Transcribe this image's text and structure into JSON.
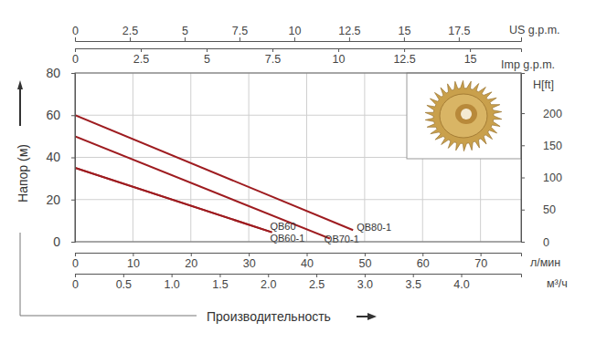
{
  "chart_data": {
    "type": "line",
    "xlabel": "Производительность",
    "ylabel": "Напор (м)",
    "xunit_label": "л/мин",
    "xlim": [
      0,
      77
    ],
    "xticks": [
      0,
      10,
      20,
      30,
      40,
      50,
      60,
      70
    ],
    "ylim": [
      0,
      80
    ],
    "yticks": [
      0,
      20,
      40,
      60,
      80
    ],
    "y2label": "H[ft]",
    "y2lim": [
      0,
      262.5
    ],
    "y2ticks": [
      0,
      50,
      100,
      150,
      200
    ],
    "x2label": "US g.p.m.",
    "x2lim": [
      0,
      20.34
    ],
    "x2ticks": [
      0,
      2.5,
      5,
      7.5,
      10,
      12.5,
      15,
      17.5
    ],
    "x3label": "Imp g.p.m.",
    "x3lim": [
      0,
      16.94
    ],
    "x3ticks": [
      0,
      2.5,
      5,
      7.5,
      10,
      12.5,
      15
    ],
    "x4label": "м³/ч",
    "x4lim": [
      0,
      4.62
    ],
    "x4ticks": [
      0,
      0.5,
      {
        "value": 1,
        "label": "1.0"
      },
      1.5,
      {
        "value": 2,
        "label": "2.0"
      },
      2.5,
      {
        "value": 3,
        "label": "3.0"
      },
      3.5,
      {
        "value": 4,
        "label": "4.0"
      }
    ],
    "grid": true,
    "series": [
      {
        "name": "QB60",
        "color": "#9e1c20",
        "x": [
          0,
          34
        ],
        "values": [
          35,
          4.5
        ]
      },
      {
        "name": "QB60-1",
        "color": "#9e1c20",
        "x": [
          0,
          34
        ],
        "values": [
          35,
          4.5
        ]
      },
      {
        "name": "QB70-1",
        "color": "#9e1c20",
        "x": [
          0,
          44
        ],
        "values": [
          50,
          1.5
        ]
      },
      {
        "name": "QB80-1",
        "color": "#9e1c20",
        "x": [
          0,
          48
        ],
        "values": [
          60,
          5.5
        ]
      }
    ]
  }
}
